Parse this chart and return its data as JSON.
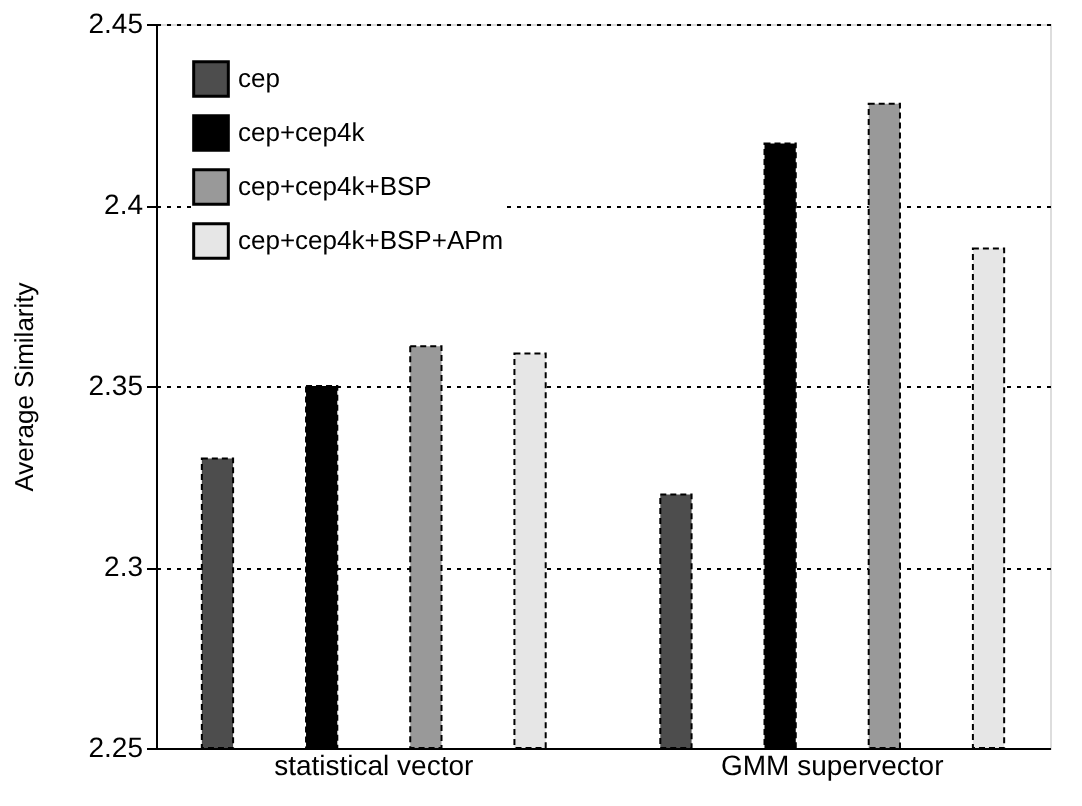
{
  "chart_data": {
    "type": "bar",
    "ylabel": "Average Similarity",
    "categories": [
      "statistical vector",
      "GMM supervector"
    ],
    "series": [
      {
        "name": "cep",
        "color": "#4d4d4d",
        "values": [
          2.33,
          2.32
        ]
      },
      {
        "name": "cep+cep4k",
        "color": "#000000",
        "values": [
          2.35,
          2.417
        ]
      },
      {
        "name": "cep+cep4k+BSP",
        "color": "#999999",
        "values": [
          2.361,
          2.428
        ]
      },
      {
        "name": "cep+cep4k+BSP+APm",
        "color": "#e6e6e6",
        "values": [
          2.359,
          2.388
        ]
      }
    ],
    "ylim": [
      2.25,
      2.45
    ],
    "yticks": [
      2.25,
      2.3,
      2.35,
      2.4,
      2.45
    ],
    "grid": "y",
    "legend": "top left"
  }
}
